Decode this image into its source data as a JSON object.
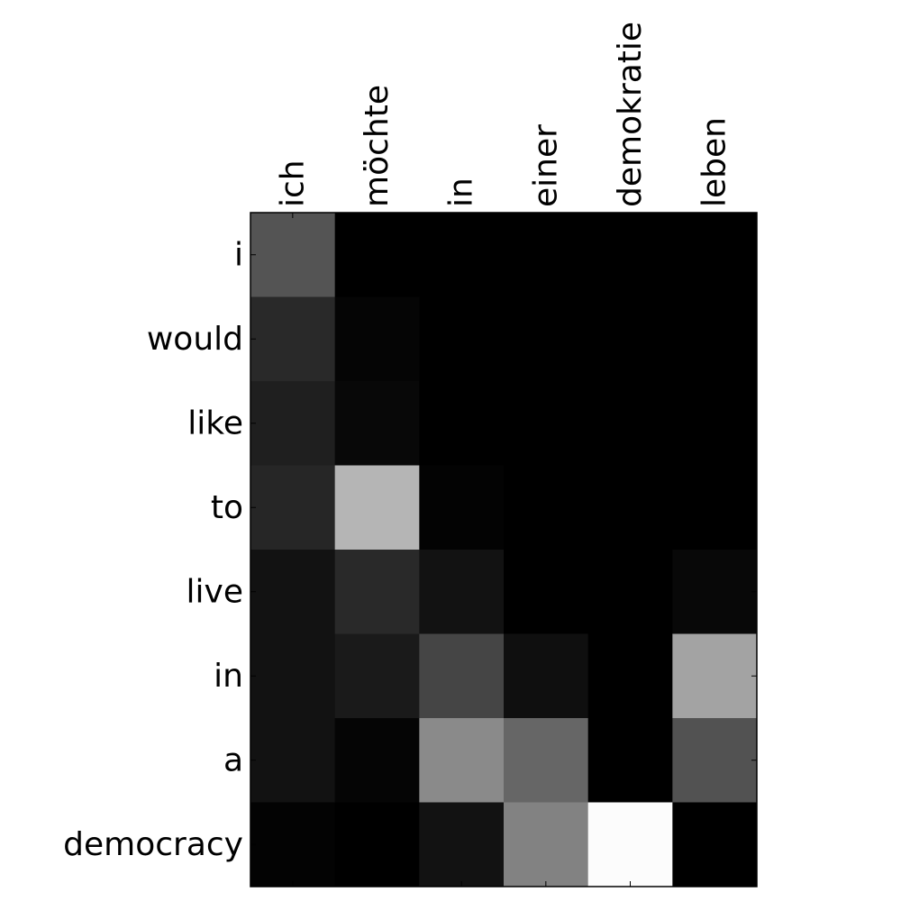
{
  "chart_data": {
    "type": "heatmap",
    "title": "",
    "xlabel": "",
    "ylabel": "",
    "x_tick_position": "top",
    "colormap": "gray",
    "value_range": [
      0,
      1
    ],
    "x_categories": [
      "ich",
      "möchte",
      "in",
      "einer",
      "demokratie",
      "leben"
    ],
    "y_categories": [
      "i",
      "would",
      "like",
      "to",
      "live",
      "in",
      "a",
      "democracy"
    ],
    "values": [
      [
        0.33,
        0.0,
        0.0,
        0.0,
        0.0,
        0.0
      ],
      [
        0.16,
        0.02,
        0.0,
        0.0,
        0.0,
        0.0
      ],
      [
        0.12,
        0.03,
        0.0,
        0.0,
        0.0,
        0.0
      ],
      [
        0.15,
        0.71,
        0.01,
        0.0,
        0.0,
        0.0
      ],
      [
        0.07,
        0.16,
        0.07,
        0.0,
        0.0,
        0.03
      ],
      [
        0.07,
        0.1,
        0.27,
        0.06,
        0.0,
        0.64
      ],
      [
        0.07,
        0.02,
        0.54,
        0.4,
        0.0,
        0.32
      ],
      [
        0.01,
        0.0,
        0.07,
        0.51,
        0.99,
        0.0
      ]
    ]
  }
}
